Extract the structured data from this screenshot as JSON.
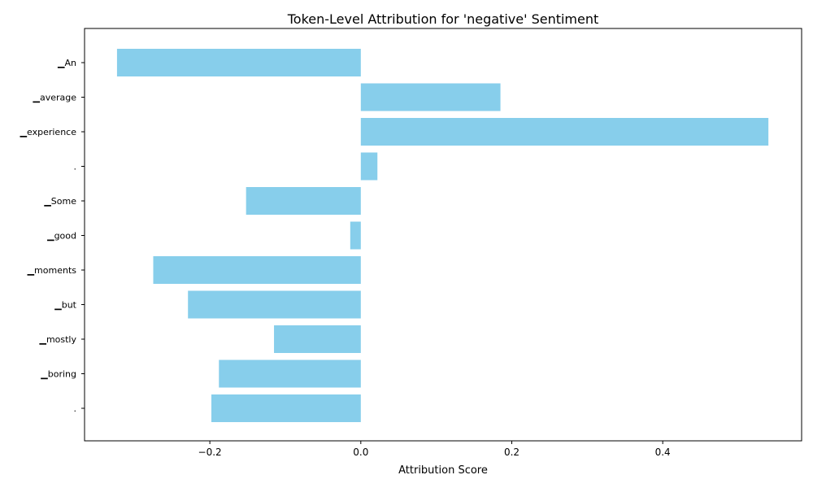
{
  "chart_data": {
    "type": "bar",
    "orientation": "horizontal",
    "title": "Token-Level Attribution for 'negative' Sentiment",
    "xlabel": "Attribution Score",
    "ylabel": "",
    "categories": [
      "▁An",
      "▁average",
      "▁experience",
      ".",
      "▁Some",
      "▁good",
      "▁moments",
      "▁but",
      "▁mostly",
      "▁boring",
      "."
    ],
    "values": [
      -0.323,
      0.185,
      0.54,
      0.022,
      -0.152,
      -0.014,
      -0.275,
      -0.229,
      -0.115,
      -0.188,
      -0.198
    ],
    "xlim": [
      -0.366,
      0.584
    ],
    "xticks": [
      -0.2,
      0.0,
      0.2,
      0.4
    ],
    "xtick_labels": [
      "−0.2",
      "0.0",
      "0.2",
      "0.4"
    ],
    "bar_color": "#87CEEB",
    "grid": false,
    "legend": "none"
  }
}
